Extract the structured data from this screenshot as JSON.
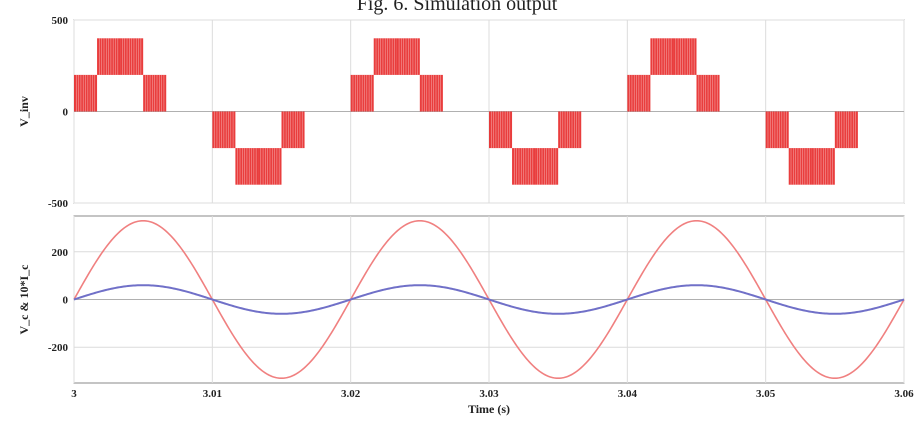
{
  "figure_title": "Fig. 6. Simulation output",
  "colors": {
    "inverter_voltage": "#e51b1b",
    "grid_voltage": "#f08080",
    "grid_current": "#7070c8",
    "grid_line": "#dcdcdc",
    "frame": "#888888"
  },
  "chart_data": [
    {
      "type": "line",
      "ylabel": "V_inv",
      "ylim": [
        -500,
        500
      ],
      "yticks": [
        500,
        0,
        -500
      ],
      "xlim": [
        3,
        3.06
      ],
      "grid": true,
      "series": [
        {
          "waveform": "five-level PWM staircase",
          "levels": [
            -400,
            -200,
            0,
            200,
            400
          ],
          "fundamental_frequency_hz": 50,
          "peak": 400
        }
      ]
    },
    {
      "type": "line",
      "ylabel": "V_c & 10*I_c",
      "xlabel": "Time (s)",
      "ylim": [
        -350,
        350
      ],
      "yticks": [
        200,
        0,
        -200
      ],
      "xlim": [
        3,
        3.06
      ],
      "xticks": [
        "3",
        "3.01",
        "3.02",
        "3.03",
        "3.04",
        "3.05",
        "3.06"
      ],
      "grid": true,
      "series": [
        {
          "waveform": "sine",
          "amplitude": 330,
          "frequency_hz": 50,
          "phase_start": "rising from 0 at t=3"
        },
        {
          "waveform": "sine",
          "amplitude": 60,
          "frequency_hz": 50,
          "phase_start": "rising from 0 at t=3"
        }
      ]
    }
  ]
}
